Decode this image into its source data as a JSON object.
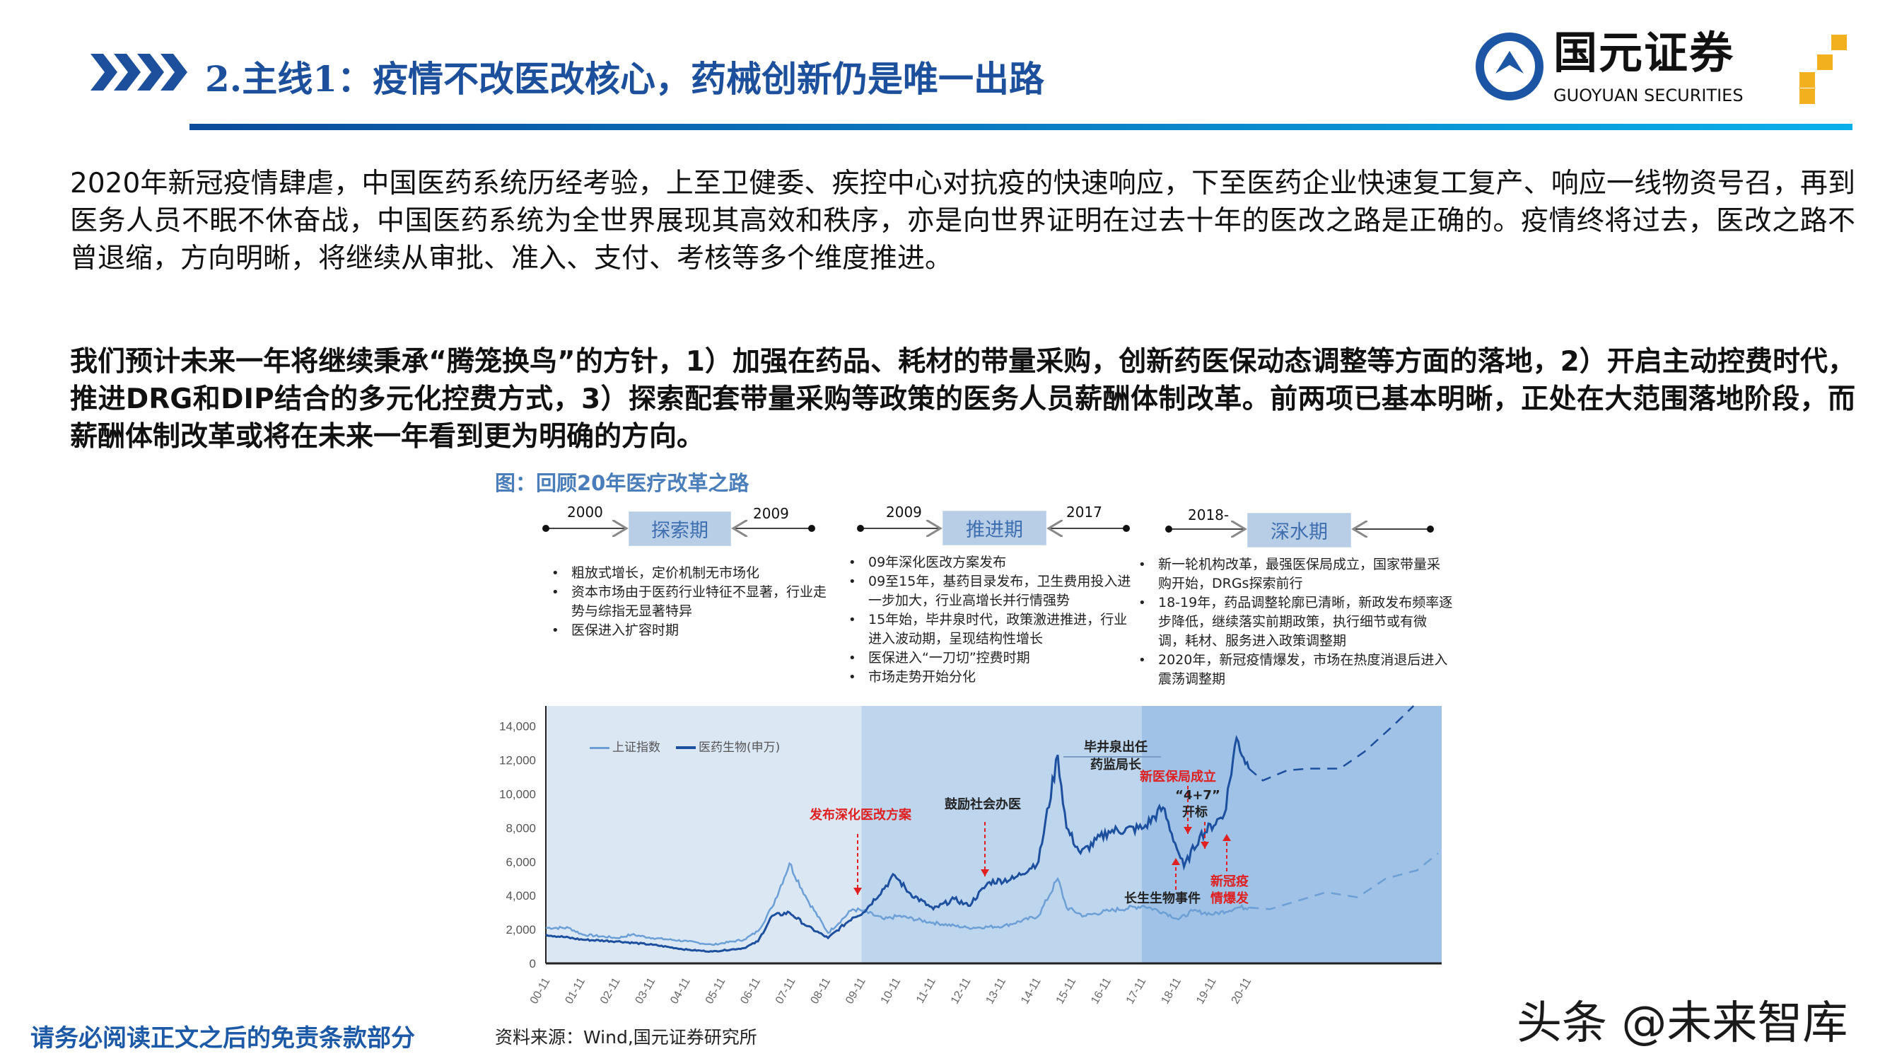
{
  "header": {
    "title": "2.主线1：疫情不改医改核心，药械创新仍是唯一出路",
    "logo_cn": "国元证券",
    "logo_en": "GUOYUAN SECURITIES"
  },
  "body": {
    "p1": "2020年新冠疫情肆虐，中国医药系统历经考验，上至卫健委、疾控中心对抗疫的快速响应，下至医药企业快速复工复产、响应一线物资号召，再到医务人员不眠不休奋战，中国医药系统为全世界展现其高效和秩序，亦是向世界证明在过去十年的医改之路是正确的。疫情终将过去，医改之路不曾退缩，方向明晰，将继续从审批、准入、支付、考核等多个维度推进。",
    "p2": "我们预计未来一年将继续秉承“腾笼换鸟”的方针，1）加强在药品、耗材的带量采购，创新药医保动态调整等方面的落地，2）开启主动控费时代，推进DRG和DIP结合的多元化控费方式，3）探索配套带量采购等政策的医务人员薪酬体制改革。前两项已基本明晰，正处在大范围落地阶段，而薪酬体制改革或将在未来一年看到更为明确的方向。"
  },
  "figure": {
    "caption": "图：回顾20年医疗改革之路",
    "phases": [
      {
        "start": "2000",
        "end": "2009",
        "name": "探索期",
        "bullets": [
          "粗放式增长，定价机制无市场化",
          "资本市场由于医药行业特征不显著，行业走势与综指无显著特异",
          "医保进入扩容时期"
        ]
      },
      {
        "start": "2009",
        "end": "2017",
        "name": "推进期",
        "bullets": [
          "09年深化医改方案发布",
          "09至15年，基药目录发布，卫生费用投入进一步加大，行业高增长并行情强势",
          "15年始，毕井泉时代，政策激进推进，行业进入波动期，呈现结构性增长",
          "医保进入“一刀切”控费时期",
          "市场走势开始分化"
        ]
      },
      {
        "start": "2018-",
        "end": "",
        "name": "深水期",
        "bullets": [
          "新一轮机构改革，最强医保局成立，国家带量采购开始，DRGs探索前行",
          "18-19年，药品调整轮廓已清晰，新政发布频率逐步降低，继续落实前期政策，执行细节或有微调，耗材、服务进入政策调整期",
          "2020年，新冠疫情爆发，市场在热度消退后进入震荡调整期"
        ]
      }
    ],
    "source": "资料来源：Wind,国元证券研究所"
  },
  "chart_data": {
    "type": "line",
    "ylim": [
      0,
      15200
    ],
    "xlim": [
      2000.85,
      2026.4
    ],
    "yticks": [
      "0",
      "2,000",
      "4,000",
      "6,000",
      "8,000",
      "10,000",
      "12,000",
      "14,000"
    ],
    "xticks": [
      "00-11",
      "01-11",
      "02-11",
      "03-11",
      "04-11",
      "05-11",
      "06-11",
      "07-11",
      "08-11",
      "09-11",
      "10-11",
      "11-11",
      "12-11",
      "13-11",
      "14-11",
      "15-11",
      "16-11",
      "17-11",
      "18-11",
      "19-11",
      "20-11"
    ],
    "legend_placement": "top-left",
    "shaded_periods": [
      {
        "from": 2000.85,
        "to": 2009.85,
        "color": "#dce7f4"
      },
      {
        "from": 2009.85,
        "to": 2017.85,
        "color": "#bdd5ed"
      },
      {
        "from": 2017.85,
        "to": 2026.4,
        "color": "#9fc2e6"
      }
    ],
    "series": [
      {
        "name": "上证指数",
        "color": "#6b9fd5",
        "x": [
          2000.85,
          2001.5,
          2001.9,
          2002.9,
          2003.3,
          2003.9,
          2004.9,
          2005.6,
          2006.5,
          2006.9,
          2007.3,
          2007.8,
          2008.3,
          2008.9,
          2009.6,
          2009.9,
          2010.5,
          2010.9,
          2011.9,
          2012.9,
          2013.9,
          2014.9,
          2015.45,
          2015.7,
          2016.2,
          2016.9,
          2017.9,
          2018.5,
          2018.9,
          2019.3,
          2019.9,
          2020.6,
          2020.9
        ],
        "y": [
          2100,
          2100,
          1700,
          1500,
          1700,
          1500,
          1300,
          1100,
          1400,
          1900,
          3300,
          5900,
          3800,
          1800,
          3200,
          3100,
          2600,
          2800,
          2400,
          2100,
          2200,
          2800,
          5000,
          3300,
          2800,
          3100,
          3400,
          3000,
          2600,
          3100,
          2900,
          3300,
          3300
        ]
      },
      {
        "name": "医药生物(申万)",
        "color": "#1d4f9f",
        "x": [
          2000.85,
          2001.9,
          2002.9,
          2003.9,
          2004.9,
          2005.6,
          2006.5,
          2006.9,
          2007.3,
          2007.8,
          2008.3,
          2008.9,
          2009.6,
          2009.9,
          2010.8,
          2011.2,
          2011.9,
          2012.5,
          2012.9,
          2013.5,
          2014.2,
          2014.9,
          2015.45,
          2015.7,
          2016.1,
          2016.9,
          2017.9,
          2018.45,
          2018.9,
          2019.05,
          2019.5,
          2020.2,
          2020.55,
          2020.9
        ],
        "y": [
          1700,
          1400,
          1300,
          1100,
          800,
          700,
          900,
          1300,
          2800,
          3000,
          2200,
          1500,
          2700,
          3000,
          5200,
          4200,
          3200,
          3800,
          3400,
          4800,
          5000,
          6000,
          12300,
          8000,
          6500,
          7800,
          8000,
          9200,
          6500,
          5700,
          7500,
          8800,
          13300,
          11500
        ]
      },
      {
        "projection_of": "上证指数",
        "color": "#6b9fd5",
        "dashed": true,
        "x": [
          2020.9,
          2021.5,
          2022.3,
          2023.1,
          2024.0,
          2024.8,
          2025.7,
          2026.3
        ],
        "y": [
          3300,
          3200,
          3700,
          4200,
          3900,
          5000,
          5500,
          6500
        ]
      },
      {
        "projection_of": "医药生物(申万)",
        "color": "#1d4f9f",
        "dashed": true,
        "x": [
          2020.9,
          2021.3,
          2022.0,
          2022.6,
          2023.5,
          2024.2,
          2025.0,
          2025.6
        ],
        "y": [
          11500,
          10800,
          11400,
          11500,
          11500,
          12500,
          14000,
          15200
        ]
      }
    ],
    "annotations": [
      {
        "text": "发布深化医改方案",
        "color": "#e02020"
      },
      {
        "text": "鼓励社会办医",
        "color": "#222222"
      },
      {
        "text": "毕井泉出任",
        "color": "#222222"
      },
      {
        "text": "药监局长",
        "color": "#222222"
      },
      {
        "text": "新医保局成立",
        "color": "#e02020"
      },
      {
        "text": "“4+7”",
        "color": "#222222"
      },
      {
        "text": "开标",
        "color": "#222222"
      },
      {
        "text": "长生生物事件",
        "color": "#222222"
      },
      {
        "text": "新冠疫",
        "color": "#e02020"
      },
      {
        "text": "情爆发",
        "color": "#e02020"
      }
    ]
  },
  "footer": {
    "disclaimer": "请务必阅读正文之后的免责条款部分",
    "watermark": "头条 @未来智库"
  }
}
